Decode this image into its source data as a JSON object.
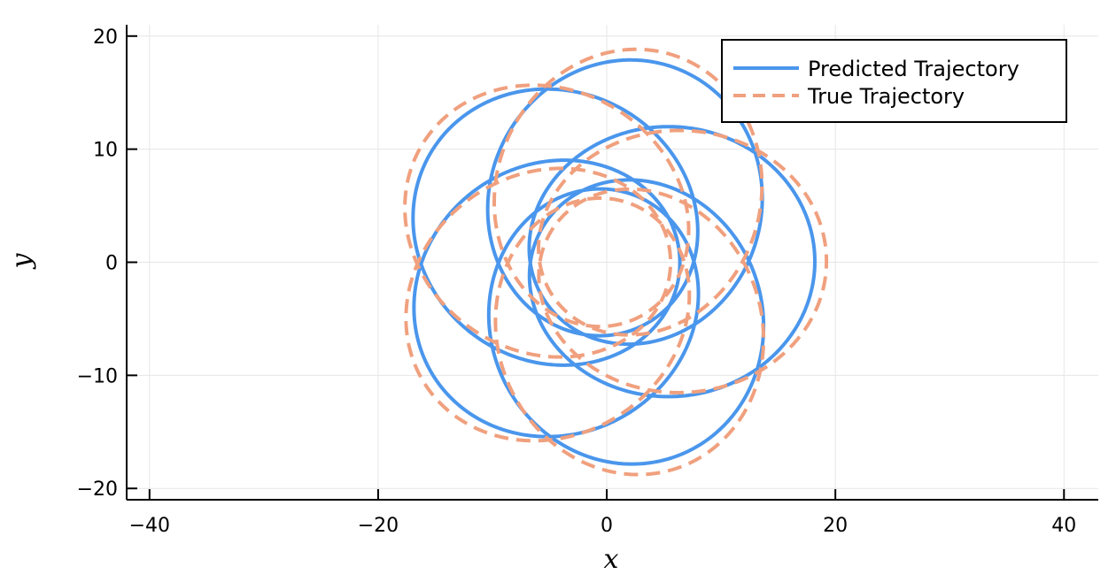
{
  "chart_data": {
    "type": "line",
    "xlabel": "x",
    "ylabel": "y",
    "xlim": [
      -42,
      43
    ],
    "ylim": [
      -21,
      21
    ],
    "x_ticks": [
      -40,
      -20,
      0,
      20,
      40
    ],
    "x_tick_labels": [
      "−40",
      "−20",
      "0",
      "20",
      "40"
    ],
    "y_ticks": [
      -20,
      -10,
      0,
      10,
      20
    ],
    "y_tick_labels": [
      "−20",
      "−10",
      "0",
      "10",
      "20"
    ],
    "grid": true,
    "legend_position": "top-right",
    "series": [
      {
        "name": "Predicted Trajectory",
        "style": "solid",
        "color": "#4a96ec",
        "orbit": {
          "a": 12.3,
          "e": 0.48,
          "precession_per_orbit": 1.05,
          "orbits": 6,
          "start_angle": 0.0,
          "end_angle_extra": 0.5
        }
      },
      {
        "name": "True Trajectory",
        "style": "dashed",
        "color": "#f0a07e",
        "orbit": {
          "a": 12.4,
          "e": 0.55,
          "precession_per_orbit": 1.05,
          "orbits": 6,
          "start_angle": 0.05,
          "end_angle_extra": 0.0
        }
      }
    ]
  }
}
